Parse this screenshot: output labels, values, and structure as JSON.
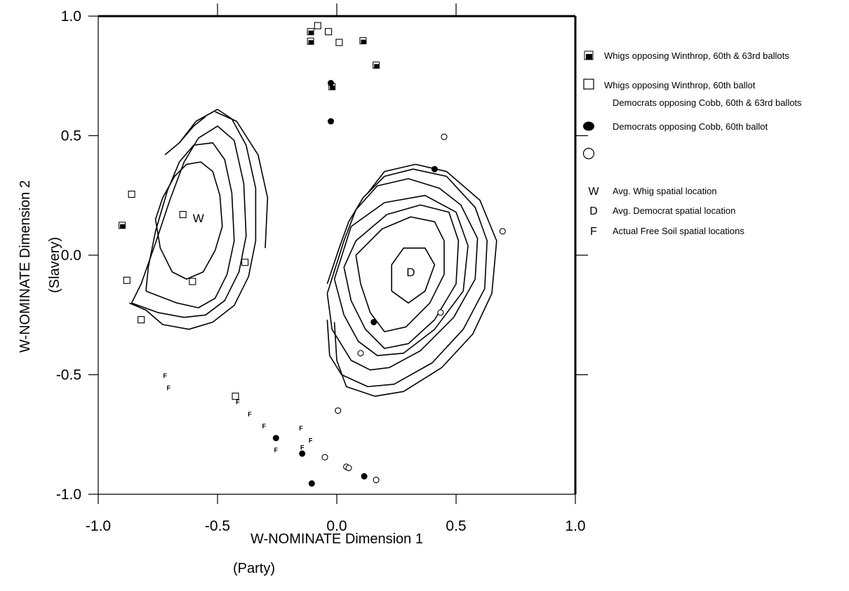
{
  "chart_data": {
    "type": "scatter",
    "xlabel": "W-NOMINATE Dimension 1",
    "xlabel_sub": "(Party)",
    "ylabel": "W-NOMINATE Dimension 2",
    "ylabel_sub": "(Slavery)",
    "xlim": [
      -1.0,
      1.0
    ],
    "ylim": [
      -1.0,
      1.0
    ],
    "x_ticks": [
      {
        "value": -1.0,
        "label": "-1.0"
      },
      {
        "value": -0.5,
        "label": "-0.5"
      },
      {
        "value": 0.0,
        "label": "0.0"
      },
      {
        "value": 0.5,
        "label": "0.5"
      },
      {
        "value": 1.0,
        "label": "1.0"
      }
    ],
    "y_ticks": [
      {
        "value": 1.0,
        "label": "1.0"
      },
      {
        "value": 0.5,
        "label": "0.5"
      },
      {
        "value": 0.0,
        "label": "0.0"
      },
      {
        "value": -0.5,
        "label": "-0.5"
      },
      {
        "value": -1.0,
        "label": "-1.0"
      }
    ],
    "grid": false,
    "legend_position": "right",
    "legend": [
      {
        "marker": "filled-square",
        "label": "Whigs opposing Winthrop, 60th & 63rd ballots"
      },
      {
        "marker": "open-square",
        "label": "Whigs opposing Winthrop, 60th ballot"
      },
      {
        "marker": "none",
        "label": "Democrats opposing Cobb, 60th & 63rd ballots"
      },
      {
        "marker": "filled-circle",
        "label": "Democrats opposing Cobb, 60th ballot"
      },
      {
        "marker": "open-circle",
        "label": ""
      },
      {
        "marker": "letter",
        "letter": "W",
        "label": "Avg. Whig spatial location"
      },
      {
        "marker": "letter",
        "letter": "D",
        "label": "Avg. Democrat spatial location"
      },
      {
        "marker": "letter",
        "letter": "F",
        "label": "Actual Free Soil spatial locations"
      }
    ],
    "centers": [
      {
        "label": "W",
        "x": -0.58,
        "y": 0.155
      },
      {
        "label": "D",
        "x": 0.31,
        "y": -0.07
      }
    ],
    "free_soil_label": "F",
    "series": [
      {
        "marker": "filled-square",
        "points": [
          [
            -0.11,
            0.935
          ],
          [
            -0.11,
            0.895
          ],
          [
            0.11,
            0.897
          ],
          [
            0.165,
            0.795
          ],
          [
            -0.9,
            0.125
          ],
          [
            -0.02,
            0.705
          ]
        ]
      },
      {
        "marker": "open-square",
        "points": [
          [
            -0.08,
            0.96
          ],
          [
            -0.035,
            0.935
          ],
          [
            0.01,
            0.89
          ],
          [
            -0.86,
            0.255
          ],
          [
            -0.645,
            0.17
          ],
          [
            -0.88,
            -0.105
          ],
          [
            -0.605,
            -0.11
          ],
          [
            -0.385,
            -0.03
          ],
          [
            -0.82,
            -0.27
          ],
          [
            -0.425,
            -0.59
          ]
        ]
      },
      {
        "marker": "filled-circle",
        "points": [
          [
            -0.025,
            0.72
          ],
          [
            -0.025,
            0.56
          ],
          [
            0.41,
            0.36
          ],
          [
            0.155,
            -0.28
          ],
          [
            -0.255,
            -0.765
          ],
          [
            -0.145,
            -0.83
          ],
          [
            0.115,
            -0.925
          ],
          [
            -0.105,
            -0.955
          ]
        ]
      },
      {
        "marker": "open-circle",
        "points": [
          [
            0.45,
            0.495
          ],
          [
            0.695,
            0.1
          ],
          [
            0.435,
            -0.24
          ],
          [
            0.1,
            -0.41
          ],
          [
            0.005,
            -0.65
          ],
          [
            -0.05,
            -0.845
          ],
          [
            0.04,
            -0.885
          ],
          [
            0.05,
            -0.89
          ],
          [
            0.165,
            -0.94
          ]
        ]
      },
      {
        "marker": "letter-F",
        "points": [
          [
            -0.72,
            -0.505
          ],
          [
            -0.705,
            -0.555
          ],
          [
            -0.415,
            -0.615
          ],
          [
            -0.365,
            -0.665
          ],
          [
            -0.305,
            -0.715
          ],
          [
            -0.255,
            -0.815
          ],
          [
            -0.15,
            -0.725
          ],
          [
            -0.145,
            -0.805
          ],
          [
            -0.11,
            -0.775
          ]
        ]
      }
    ],
    "contours": [
      {
        "group": "W",
        "points": [
          [
            -0.76,
            0.15
          ],
          [
            -0.73,
            0.24
          ],
          [
            -0.68,
            0.33
          ],
          [
            -0.63,
            0.38
          ],
          [
            -0.57,
            0.39
          ],
          [
            -0.52,
            0.35
          ],
          [
            -0.49,
            0.25
          ],
          [
            -0.48,
            0.12
          ],
          [
            -0.51,
            0.02
          ],
          [
            -0.56,
            -0.07
          ],
          [
            -0.63,
            -0.1
          ],
          [
            -0.69,
            -0.07
          ],
          [
            -0.74,
            0.03
          ],
          [
            -0.76,
            0.15
          ]
        ]
      },
      {
        "group": "W",
        "points": [
          [
            -0.8,
            -0.15
          ],
          [
            -0.79,
            -0.05
          ],
          [
            -0.76,
            0.1
          ],
          [
            -0.71,
            0.27
          ],
          [
            -0.66,
            0.39
          ],
          [
            -0.6,
            0.46
          ],
          [
            -0.52,
            0.47
          ],
          [
            -0.47,
            0.4
          ],
          [
            -0.44,
            0.26
          ],
          [
            -0.43,
            0.06
          ],
          [
            -0.46,
            -0.08
          ],
          [
            -0.51,
            -0.18
          ],
          [
            -0.58,
            -0.22
          ],
          [
            -0.67,
            -0.2
          ],
          [
            -0.8,
            -0.15
          ]
        ]
      },
      {
        "group": "W",
        "points": [
          [
            -0.86,
            -0.2
          ],
          [
            -0.82,
            -0.12
          ],
          [
            -0.76,
            0.05
          ],
          [
            -0.7,
            0.23
          ],
          [
            -0.64,
            0.39
          ],
          [
            -0.58,
            0.49
          ],
          [
            -0.5,
            0.54
          ],
          [
            -0.43,
            0.48
          ],
          [
            -0.39,
            0.3
          ],
          [
            -0.38,
            0.08
          ],
          [
            -0.41,
            -0.07
          ],
          [
            -0.47,
            -0.19
          ],
          [
            -0.55,
            -0.25
          ],
          [
            -0.64,
            -0.26
          ],
          [
            -0.75,
            -0.24
          ],
          [
            -0.86,
            -0.2
          ]
        ]
      },
      {
        "group": "W",
        "points": [
          [
            -0.72,
            0.42
          ],
          [
            -0.66,
            0.47
          ],
          [
            -0.59,
            0.56
          ],
          [
            -0.5,
            0.61
          ],
          [
            -0.44,
            0.57
          ],
          [
            -0.38,
            0.46
          ],
          [
            -0.34,
            0.28
          ],
          [
            -0.34,
            0.06
          ],
          [
            -0.37,
            -0.09
          ],
          [
            -0.43,
            -0.21
          ],
          [
            -0.52,
            -0.28
          ],
          [
            -0.62,
            -0.31
          ],
          [
            -0.73,
            -0.29
          ],
          [
            -0.8,
            -0.23
          ],
          [
            -0.87,
            -0.2
          ]
        ]
      },
      {
        "group": "W",
        "points": [
          [
            -0.66,
            0.47
          ],
          [
            -0.6,
            0.54
          ],
          [
            -0.55,
            0.58
          ]
        ]
      },
      {
        "group": "W",
        "points": [
          [
            -0.51,
            0.6
          ],
          [
            -0.42,
            0.56
          ],
          [
            -0.33,
            0.42
          ],
          [
            -0.29,
            0.24
          ],
          [
            -0.3,
            0.03
          ]
        ]
      },
      {
        "group": "D",
        "points": [
          [
            0.23,
            -0.15
          ],
          [
            0.3,
            -0.2
          ],
          [
            0.37,
            -0.15
          ],
          [
            0.41,
            -0.04
          ],
          [
            0.37,
            0.03
          ],
          [
            0.28,
            0.03
          ],
          [
            0.23,
            -0.04
          ],
          [
            0.23,
            -0.15
          ]
        ]
      },
      {
        "group": "D",
        "points": [
          [
            0.08,
            0.0
          ],
          [
            0.1,
            -0.12
          ],
          [
            0.14,
            -0.24
          ],
          [
            0.2,
            -0.32
          ],
          [
            0.29,
            -0.3
          ],
          [
            0.39,
            -0.2
          ],
          [
            0.45,
            -0.08
          ],
          [
            0.45,
            0.06
          ],
          [
            0.41,
            0.14
          ],
          [
            0.31,
            0.16
          ],
          [
            0.19,
            0.11
          ],
          [
            0.08,
            0.0
          ]
        ]
      },
      {
        "group": "D",
        "points": [
          [
            0.03,
            -0.05
          ],
          [
            0.06,
            -0.19
          ],
          [
            0.12,
            -0.31
          ],
          [
            0.2,
            -0.39
          ],
          [
            0.3,
            -0.37
          ],
          [
            0.41,
            -0.27
          ],
          [
            0.5,
            -0.12
          ],
          [
            0.51,
            0.06
          ],
          [
            0.47,
            0.18
          ],
          [
            0.35,
            0.21
          ],
          [
            0.21,
            0.17
          ],
          [
            0.08,
            0.06
          ],
          [
            0.03,
            -0.05
          ]
        ]
      },
      {
        "group": "D",
        "points": [
          [
            -0.01,
            -0.1
          ],
          [
            0.03,
            -0.25
          ],
          [
            0.09,
            -0.36
          ],
          [
            0.17,
            -0.42
          ],
          [
            0.28,
            -0.41
          ],
          [
            0.41,
            -0.31
          ],
          [
            0.53,
            -0.15
          ],
          [
            0.55,
            0.04
          ],
          [
            0.5,
            0.18
          ],
          [
            0.37,
            0.25
          ],
          [
            0.2,
            0.22
          ],
          [
            0.06,
            0.12
          ],
          [
            -0.01,
            -0.1
          ]
        ]
      },
      {
        "group": "D",
        "points": [
          [
            -0.04,
            -0.16
          ],
          [
            -0.02,
            -0.31
          ],
          [
            0.06,
            -0.44
          ],
          [
            0.14,
            -0.48
          ],
          [
            0.22,
            -0.47
          ],
          [
            0.35,
            -0.4
          ],
          [
            0.49,
            -0.26
          ],
          [
            0.58,
            -0.1
          ],
          [
            0.59,
            0.07
          ],
          [
            0.52,
            0.21
          ],
          [
            0.43,
            0.28
          ],
          [
            0.3,
            0.32
          ],
          [
            0.17,
            0.29
          ],
          [
            0.08,
            0.19
          ],
          [
            0.03,
            0.06
          ],
          [
            -0.04,
            -0.16
          ]
        ]
      },
      {
        "group": "D",
        "points": [
          [
            -0.04,
            -0.27
          ],
          [
            -0.03,
            -0.42
          ],
          [
            0.02,
            -0.5
          ],
          [
            0.13,
            -0.55
          ],
          [
            0.24,
            -0.54
          ],
          [
            0.4,
            -0.45
          ],
          [
            0.53,
            -0.31
          ],
          [
            0.62,
            -0.14
          ],
          [
            0.63,
            0.06
          ],
          [
            0.58,
            0.2
          ],
          [
            0.46,
            0.33
          ],
          [
            0.32,
            0.36
          ],
          [
            0.2,
            0.33
          ],
          [
            0.11,
            0.24
          ],
          [
            0.05,
            0.14
          ],
          [
            0.01,
            0.03
          ],
          [
            -0.04,
            -0.12
          ]
        ]
      },
      {
        "group": "D",
        "points": [
          [
            -0.01,
            -0.28
          ],
          [
            0.0,
            -0.44
          ],
          [
            0.04,
            -0.55
          ],
          [
            0.16,
            -0.59
          ],
          [
            0.28,
            -0.57
          ],
          [
            0.44,
            -0.47
          ],
          [
            0.57,
            -0.33
          ],
          [
            0.65,
            -0.16
          ],
          [
            0.67,
            0.06
          ],
          [
            0.6,
            0.23
          ],
          [
            0.46,
            0.35
          ],
          [
            0.33,
            0.38
          ],
          [
            0.2,
            0.35
          ],
          [
            0.13,
            0.26
          ]
        ]
      }
    ]
  }
}
